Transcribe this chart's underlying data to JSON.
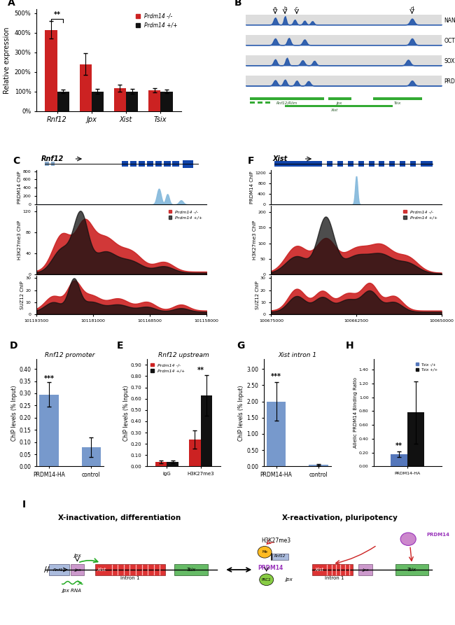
{
  "panel_A": {
    "categories": [
      "Rnf12",
      "Jpx",
      "Xist",
      "Tsix"
    ],
    "red_values": [
      415,
      240,
      118,
      105
    ],
    "black_values": [
      100,
      100,
      100,
      100
    ],
    "red_errors": [
      45,
      55,
      18,
      10
    ],
    "black_errors": [
      8,
      12,
      12,
      10
    ],
    "yticks": [
      0,
      100,
      200,
      300,
      400,
      500
    ],
    "ytick_labels": [
      "0%",
      "100%",
      "200%",
      "300%",
      "400%",
      "500%"
    ],
    "legend_red": "Prdm14 -/-",
    "legend_black": "Prdm14 +/+",
    "bar_width": 0.35
  },
  "panel_D": {
    "subtitle": "Rnf12 promoter",
    "categories": [
      "PRDM14-HA",
      "control"
    ],
    "values": [
      0.295,
      0.08
    ],
    "errors": [
      0.05,
      0.04
    ],
    "yticks": [
      0.0,
      0.05,
      0.1,
      0.15,
      0.2,
      0.25,
      0.3,
      0.35,
      0.4
    ]
  },
  "panel_E": {
    "subtitle": "Rnf12 upstream",
    "categories": [
      "IgG",
      "H3K27me3"
    ],
    "red_values": [
      0.04,
      0.24
    ],
    "black_values": [
      0.04,
      0.63
    ],
    "red_errors": [
      0.01,
      0.08
    ],
    "black_errors": [
      0.01,
      0.18
    ],
    "yticks": [
      0.0,
      0.1,
      0.2,
      0.3,
      0.4,
      0.5,
      0.6,
      0.7,
      0.8,
      0.9
    ],
    "bar_width": 0.35
  },
  "panel_G": {
    "subtitle": "Xist intron 1",
    "categories": [
      "PRDM14-HA",
      "control"
    ],
    "values": [
      2.0,
      0.05
    ],
    "errors": [
      0.6,
      0.02
    ],
    "yticks": [
      0.0,
      0.5,
      1.0,
      1.5,
      2.0,
      2.5,
      3.0
    ]
  },
  "panel_H": {
    "categories": [
      "PRDM14-HA"
    ],
    "blue_values": [
      0.18
    ],
    "black_values": [
      0.78
    ],
    "blue_errors": [
      0.04
    ],
    "black_errors": [
      0.45
    ],
    "yticks": [
      0.0,
      0.2,
      0.4,
      0.6,
      0.8,
      1.0,
      1.2,
      1.4
    ],
    "bar_width": 0.3
  },
  "colors": {
    "red": "#cc2222",
    "black": "#111111",
    "blue_bar": "#7799cc",
    "chip_blue": "#88bbdd",
    "green": "#22aa22",
    "purple": "#9933bb"
  },
  "panel_C": {
    "xtick_labels": [
      "101193500",
      "101181000",
      "101168500",
      "101158000"
    ],
    "prdm14_yticks": [
      0,
      200,
      400,
      600,
      800
    ],
    "h3k_yticks": [
      0,
      40,
      80,
      120
    ],
    "suz_yticks": [
      0,
      10,
      20,
      30
    ]
  },
  "panel_F": {
    "xtick_labels": [
      "100675000",
      "100662500",
      "100650000"
    ],
    "prdm14_yticks": [
      0,
      400,
      800,
      1200
    ],
    "h3k_yticks": [
      0,
      50,
      100,
      150,
      200
    ],
    "suz_yticks": [
      0,
      10,
      20,
      30
    ]
  }
}
